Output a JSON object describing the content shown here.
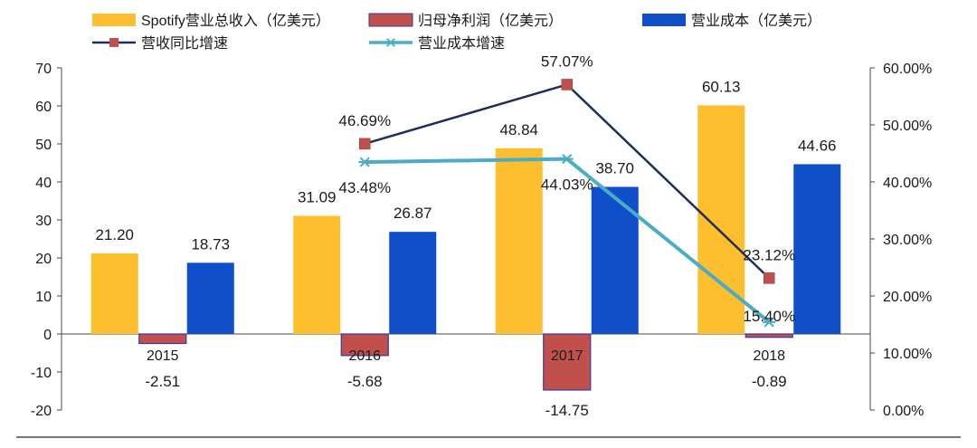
{
  "chart_data": {
    "type": "bar",
    "categories": [
      "2015",
      "2016",
      "2017",
      "2018"
    ],
    "bar_series": [
      {
        "name": "Spotify营业总收入（亿美元）",
        "values": [
          21.2,
          31.09,
          48.84,
          60.13
        ],
        "labels": [
          "21.20",
          "31.09",
          "48.84",
          "60.13"
        ],
        "color": "#FDBF2D",
        "stroke": "#FDBF2D"
      },
      {
        "name": "归母净利润（亿美元）",
        "values": [
          -2.51,
          -5.68,
          -14.75,
          -0.89
        ],
        "labels": [
          "-2.51",
          "-5.68",
          "-14.75",
          "-0.89"
        ],
        "color": "#C0504D",
        "stroke": "#3A3A9A"
      },
      {
        "name": "营业成本（亿美元）",
        "values": [
          18.73,
          26.87,
          38.7,
          44.66
        ],
        "labels": [
          "18.73",
          "26.87",
          "38.70",
          "44.66"
        ],
        "color": "#0F4FC9",
        "stroke": "#0F4FC9"
      }
    ],
    "line_series": [
      {
        "name": "营收同比增速",
        "x": [
          "2016",
          "2017",
          "2018"
        ],
        "values": [
          46.69,
          57.07,
          23.12
        ],
        "labels": [
          "46.69%",
          "57.07%",
          "23.12%"
        ],
        "color": "#1F2D5E",
        "marker": "square",
        "marker_color": "#C0504D"
      },
      {
        "name": "营业成本增速",
        "x": [
          "2016",
          "2017",
          "2018"
        ],
        "values": [
          43.48,
          44.03,
          15.4
        ],
        "labels": [
          "43.48%",
          "44.03%",
          "15.40%"
        ],
        "color": "#4BACC6",
        "marker": "asterisk",
        "marker_color": "#4BACC6"
      }
    ],
    "y_left": {
      "min": -20,
      "max": 70,
      "step": 10,
      "ticks": [
        "70",
        "60",
        "50",
        "40",
        "30",
        "20",
        "10",
        "0",
        "-10",
        "-20"
      ]
    },
    "y_right": {
      "min": 0,
      "max": 60,
      "step": 10,
      "ticks": [
        "60.00%",
        "50.00%",
        "40.00%",
        "30.00%",
        "20.00%",
        "10.00%",
        "0.00%"
      ]
    },
    "legend": {
      "position": "top"
    }
  }
}
